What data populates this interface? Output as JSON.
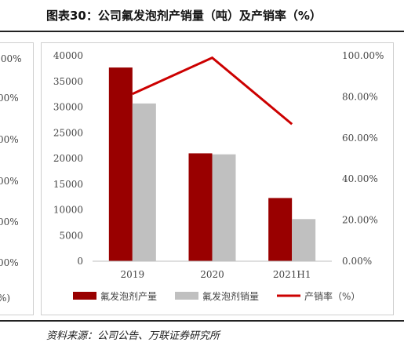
{
  "header": {
    "title": "图表30：公司氟发泡剂产销量（吨）及产销率（%）"
  },
  "source": "资料来源：公司公告、万联证券研究所",
  "left_panel": {
    "tick_labels": [
      ".00%",
      "00%",
      "00%",
      "00%",
      "00%",
      "00%",
      "%)"
    ]
  },
  "chart_data": {
    "type": "bar",
    "title": "",
    "categories": [
      "2019",
      "2020",
      "2021H1"
    ],
    "series": [
      {
        "name": "氟发泡剂产量",
        "kind": "bar",
        "axis": "left",
        "color": "#990000",
        "values": [
          37700,
          21000,
          12300
        ]
      },
      {
        "name": "氟发泡剂销量",
        "kind": "bar",
        "axis": "left",
        "color": "#c0c0c0",
        "values": [
          30700,
          20800,
          8200
        ]
      },
      {
        "name": "产销率（%）",
        "kind": "line",
        "axis": "right",
        "color": "#cc0000",
        "values": [
          81.4,
          99.0,
          66.7
        ]
      }
    ],
    "y_left": {
      "min": 0,
      "max": 40000,
      "ticks": [
        "0",
        "5000",
        "10000",
        "15000",
        "20000",
        "25000",
        "30000",
        "35000",
        "40000"
      ]
    },
    "y_right": {
      "min": 0,
      "max": 100,
      "ticks": [
        "0.00%",
        "20.00%",
        "40.00%",
        "60.00%",
        "80.00%",
        "100.00%"
      ]
    },
    "grid": false,
    "legend_position": "bottom"
  }
}
